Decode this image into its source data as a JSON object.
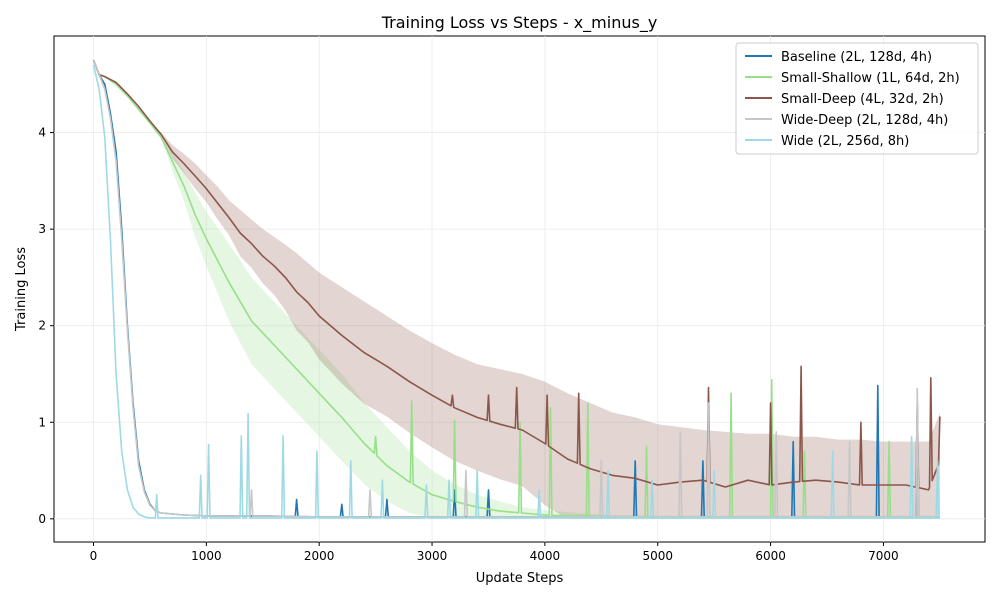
{
  "chart_data": {
    "type": "line",
    "title": "Training Loss vs Steps - x_minus_y",
    "xlabel": "Update Steps",
    "ylabel": "Training Loss",
    "xlim": [
      -350,
      7900
    ],
    "ylim": [
      -0.24,
      5.0
    ],
    "x_ticks": [
      0,
      1000,
      2000,
      3000,
      4000,
      5000,
      6000,
      7000
    ],
    "y_ticks": [
      0,
      1,
      2,
      3,
      4
    ],
    "grid": true,
    "legend_position": "top-right",
    "series": [
      {
        "name": "Baseline (2L, 128d, 4h)",
        "color": "#1f77b4",
        "x": [
          0,
          50,
          100,
          150,
          200,
          250,
          300,
          350,
          400,
          450,
          500,
          550,
          600,
          700,
          800,
          1000,
          1500,
          2000,
          3000,
          4000,
          5000,
          6000,
          7000,
          7500
        ],
        "y": [
          4.75,
          4.6,
          4.5,
          4.2,
          3.8,
          3.0,
          2.0,
          1.2,
          0.6,
          0.3,
          0.15,
          0.08,
          0.06,
          0.05,
          0.04,
          0.03,
          0.03,
          0.02,
          0.02,
          0.02,
          0.02,
          0.02,
          0.02,
          0.02
        ],
        "spikes": [
          [
            1800,
            0.2
          ],
          [
            2200,
            0.15
          ],
          [
            2600,
            0.2
          ],
          [
            3200,
            0.3
          ],
          [
            3500,
            0.3
          ],
          [
            4800,
            0.6
          ],
          [
            5400,
            0.6
          ],
          [
            6200,
            0.8
          ],
          [
            6950,
            1.38
          ],
          [
            7300,
            1.15
          ]
        ]
      },
      {
        "name": "Small-Shallow (1L, 64d, 2h)",
        "color": "#98df8a",
        "x": [
          0,
          50,
          100,
          200,
          300,
          400,
          500,
          600,
          700,
          800,
          900,
          1000,
          1200,
          1400,
          1600,
          1800,
          2000,
          2200,
          2400,
          2600,
          2800,
          3000,
          3200,
          3400,
          3600,
          3800,
          4000,
          4200,
          4400,
          4600,
          4800,
          5000,
          5500,
          6000,
          6500,
          7000,
          7500
        ],
        "y": [
          4.75,
          4.6,
          4.58,
          4.5,
          4.38,
          4.24,
          4.1,
          3.95,
          3.7,
          3.45,
          3.15,
          2.9,
          2.45,
          2.05,
          1.8,
          1.55,
          1.3,
          1.05,
          0.78,
          0.55,
          0.38,
          0.25,
          0.18,
          0.12,
          0.08,
          0.06,
          0.04,
          0.03,
          0.03,
          0.02,
          0.02,
          0.02,
          0.02,
          0.02,
          0.02,
          0.02,
          0.02
        ],
        "band_upper": [
          4.75,
          4.6,
          4.58,
          4.5,
          4.38,
          4.24,
          4.1,
          3.95,
          3.8,
          3.6,
          3.38,
          3.18,
          2.85,
          2.5,
          2.25,
          2.0,
          1.75,
          1.5,
          1.2,
          0.95,
          0.7,
          0.5,
          0.36,
          0.25,
          0.18,
          0.12,
          0.09,
          0.07,
          0.05,
          0.04,
          0.04,
          0.03,
          0.03,
          0.03,
          0.03,
          0.03,
          0.03
        ],
        "band_lower": [
          4.75,
          4.6,
          4.58,
          4.5,
          4.38,
          4.24,
          4.1,
          3.95,
          3.6,
          3.3,
          2.92,
          2.62,
          2.05,
          1.6,
          1.35,
          1.1,
          0.85,
          0.6,
          0.36,
          0.18,
          0.06,
          0.01,
          0.0,
          0.0,
          0.0,
          0.0,
          0.0,
          0.0,
          0.0,
          0.0,
          0.0,
          0.0,
          0.0,
          0.0,
          0.0,
          0.0,
          0.0
        ],
        "spikes": [
          [
            2500,
            0.85
          ],
          [
            2820,
            1.22
          ],
          [
            3200,
            1.02
          ],
          [
            3780,
            1.0
          ],
          [
            4050,
            1.15
          ],
          [
            4380,
            1.2
          ],
          [
            4900,
            0.75
          ],
          [
            5650,
            1.3
          ],
          [
            6010,
            1.44
          ],
          [
            6300,
            0.7
          ],
          [
            7050,
            0.8
          ]
        ]
      },
      {
        "name": "Small-Deep (4L, 32d, 2h)",
        "color": "#8c564b",
        "x": [
          0,
          50,
          100,
          200,
          300,
          400,
          500,
          600,
          700,
          800,
          900,
          1000,
          1100,
          1200,
          1300,
          1400,
          1500,
          1600,
          1700,
          1800,
          1900,
          2000,
          2200,
          2400,
          2600,
          2800,
          3000,
          3200,
          3400,
          3600,
          3800,
          4000,
          4200,
          4400,
          4600,
          4800,
          5000,
          5200,
          5400,
          5600,
          5800,
          6000,
          6200,
          6400,
          6600,
          6800,
          7000,
          7200,
          7400,
          7500
        ],
        "y": [
          4.75,
          4.6,
          4.58,
          4.52,
          4.4,
          4.27,
          4.12,
          3.98,
          3.8,
          3.68,
          3.55,
          3.42,
          3.27,
          3.12,
          2.96,
          2.85,
          2.72,
          2.62,
          2.5,
          2.35,
          2.24,
          2.1,
          1.9,
          1.72,
          1.58,
          1.42,
          1.28,
          1.15,
          1.05,
          0.98,
          0.92,
          0.78,
          0.62,
          0.52,
          0.45,
          0.42,
          0.35,
          0.38,
          0.4,
          0.33,
          0.4,
          0.35,
          0.38,
          0.4,
          0.38,
          0.35,
          0.35,
          0.35,
          0.3,
          0.6
        ],
        "band_upper": [
          4.75,
          4.6,
          4.58,
          4.52,
          4.4,
          4.27,
          4.12,
          4.0,
          3.87,
          3.78,
          3.68,
          3.56,
          3.44,
          3.3,
          3.2,
          3.1,
          3.0,
          2.92,
          2.84,
          2.75,
          2.65,
          2.55,
          2.4,
          2.25,
          2.1,
          1.95,
          1.82,
          1.7,
          1.6,
          1.55,
          1.5,
          1.42,
          1.3,
          1.2,
          1.1,
          1.05,
          0.98,
          0.95,
          0.92,
          0.9,
          0.88,
          0.88,
          0.85,
          0.85,
          0.82,
          0.82,
          0.8,
          0.8,
          0.8,
          1.1
        ],
        "band_lower": [
          4.75,
          4.6,
          4.58,
          4.52,
          4.4,
          4.27,
          4.12,
          3.96,
          3.73,
          3.58,
          3.42,
          3.28,
          3.1,
          2.94,
          2.72,
          2.6,
          2.44,
          2.32,
          2.16,
          1.95,
          1.83,
          1.65,
          1.4,
          1.19,
          1.06,
          0.89,
          0.74,
          0.6,
          0.5,
          0.41,
          0.34,
          0.14,
          0.0,
          0.0,
          0.0,
          0.0,
          0.0,
          0.0,
          0.0,
          0.0,
          0.0,
          0.0,
          0.0,
          0.0,
          0.0,
          0.0,
          0.0,
          0.0,
          0.0,
          0.0
        ],
        "spikes": [
          [
            3180,
            1.28
          ],
          [
            3500,
            1.28
          ],
          [
            3750,
            1.36
          ],
          [
            4020,
            1.28
          ],
          [
            4300,
            1.3
          ],
          [
            5450,
            1.36
          ],
          [
            6000,
            1.2
          ],
          [
            6270,
            1.58
          ],
          [
            6800,
            1.0
          ],
          [
            7300,
            1.2
          ],
          [
            7420,
            1.46
          ],
          [
            7500,
            1.06
          ]
        ]
      },
      {
        "name": "Wide-Deep (2L, 128d, 4h)",
        "color": "#c7c7c7",
        "x": [
          0,
          50,
          100,
          150,
          200,
          250,
          300,
          350,
          400,
          450,
          500,
          550,
          600,
          700,
          800,
          1000,
          1500,
          2000,
          3000,
          4000,
          5000,
          6000,
          7000,
          7500
        ],
        "y": [
          4.75,
          4.6,
          4.45,
          4.15,
          3.7,
          2.9,
          1.95,
          1.15,
          0.55,
          0.28,
          0.14,
          0.08,
          0.06,
          0.05,
          0.04,
          0.03,
          0.03,
          0.02,
          0.02,
          0.02,
          0.02,
          0.02,
          0.02,
          0.02
        ],
        "spikes": [
          [
            1400,
            0.3
          ],
          [
            2450,
            0.3
          ],
          [
            3300,
            0.5
          ],
          [
            4500,
            0.6
          ],
          [
            5200,
            0.9
          ],
          [
            5450,
            1.2
          ],
          [
            6050,
            0.9
          ],
          [
            6700,
            0.8
          ],
          [
            7300,
            1.35
          ],
          [
            7480,
            0.55
          ]
        ]
      },
      {
        "name": "Wide (2L, 256d, 8h)",
        "color": "#9edae5",
        "x": [
          0,
          50,
          100,
          150,
          200,
          250,
          300,
          350,
          400,
          450,
          500,
          600,
          700,
          800,
          900,
          1000,
          2000,
          3000,
          4000,
          5000,
          6000,
          7000,
          7500
        ],
        "y": [
          4.7,
          4.45,
          3.95,
          2.9,
          1.5,
          0.7,
          0.3,
          0.12,
          0.05,
          0.02,
          0.01,
          0.01,
          0.01,
          0.01,
          0.01,
          0.01,
          0.01,
          0.01,
          0.01,
          0.01,
          0.01,
          0.01,
          0.01
        ],
        "spikes": [
          [
            560,
            0.25
          ],
          [
            950,
            0.45
          ],
          [
            1020,
            0.77
          ],
          [
            1310,
            0.86
          ],
          [
            1370,
            1.09
          ],
          [
            1680,
            0.86
          ],
          [
            1980,
            0.7
          ],
          [
            2280,
            0.6
          ],
          [
            2560,
            0.4
          ],
          [
            2950,
            0.35
          ],
          [
            3150,
            0.4
          ],
          [
            3400,
            0.5
          ],
          [
            3950,
            0.3
          ],
          [
            4560,
            0.5
          ],
          [
            4950,
            0.4
          ],
          [
            5500,
            0.5
          ],
          [
            6550,
            0.7
          ],
          [
            7250,
            0.85
          ],
          [
            7480,
            0.6
          ]
        ]
      }
    ]
  }
}
